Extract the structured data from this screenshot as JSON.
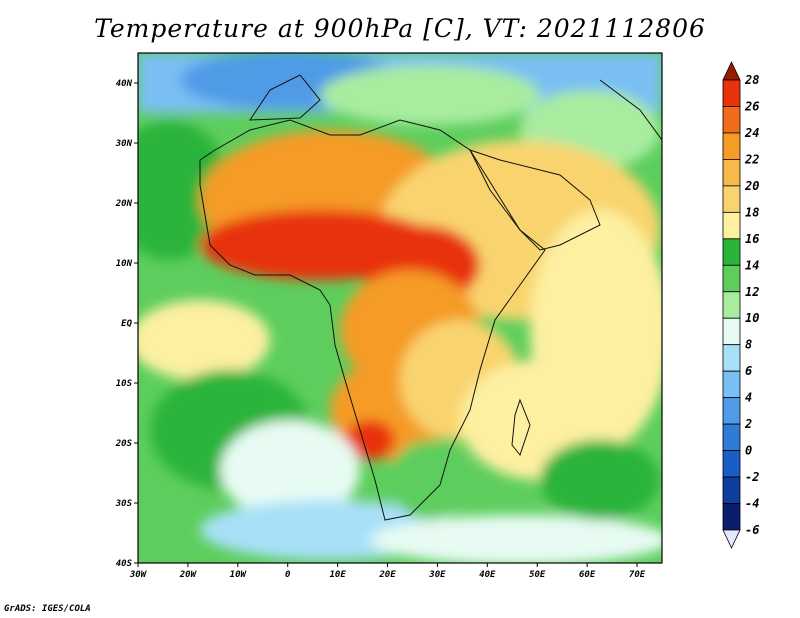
{
  "title": "Temperature at 900hPa [C], VT: 2021112806",
  "credit": "GrADS: IGES/COLA",
  "map": {
    "lon_ticks": [
      "30W",
      "20W",
      "10W",
      "0",
      "10E",
      "20E",
      "30E",
      "40E",
      "50E",
      "60E",
      "70E"
    ],
    "lat_ticks": [
      "40N",
      "30N",
      "20N",
      "10N",
      "EQ",
      "10S",
      "20S",
      "30S",
      "40S"
    ],
    "lon_range": [
      -30,
      75
    ],
    "lat_range": [
      -40,
      45
    ]
  },
  "colorbar": {
    "labels": [
      "28",
      "26",
      "24",
      "22",
      "20",
      "18",
      "16",
      "14",
      "12",
      "10",
      "8",
      "6",
      "4",
      "2",
      "0",
      "-2",
      "-4",
      "-6"
    ],
    "colors": [
      "#9a1a00",
      "#e8330a",
      "#f26b1a",
      "#f59b26",
      "#f7b94a",
      "#f9d46e",
      "#fdf0a0",
      "#2bb43a",
      "#5dce5d",
      "#a9eca0",
      "#e7fbf3",
      "#a8e0f8",
      "#79bff3",
      "#4f9be6",
      "#2f7bd8",
      "#1a5cc8",
      "#0e3e9e",
      "#0a1d6e",
      "#e6e8ff"
    ]
  }
}
